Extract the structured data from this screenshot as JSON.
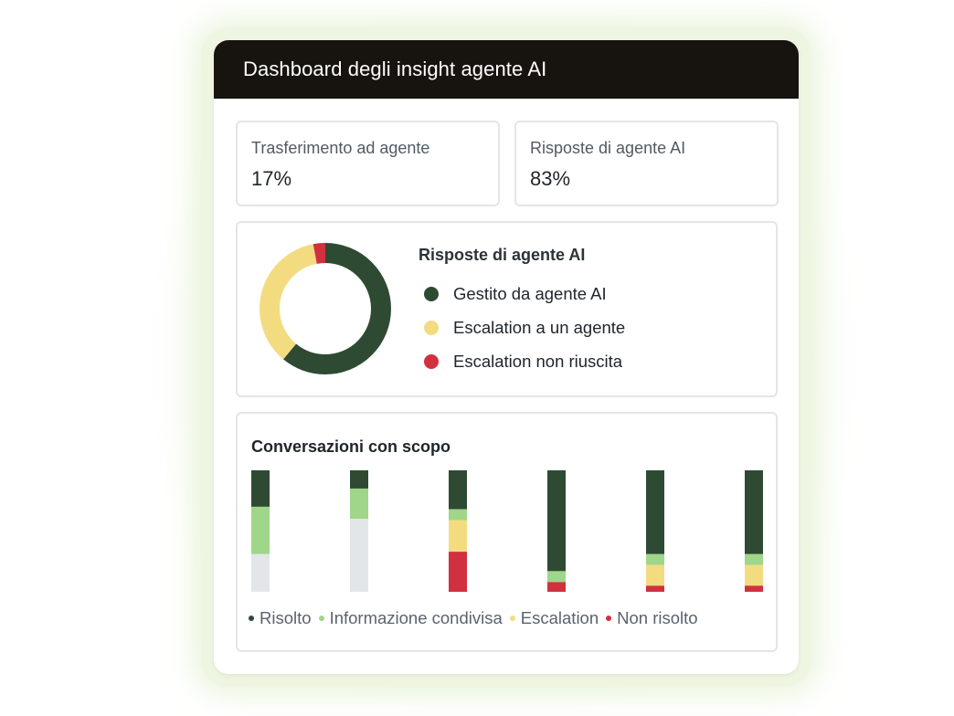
{
  "header": {
    "title": "Dashboard degli insight agente AI"
  },
  "stats": [
    {
      "label": "Trasferimento ad agente",
      "value": "17%"
    },
    {
      "label": "Risposte di agente AI",
      "value": "83%"
    }
  ],
  "donut": {
    "title": "Risposte di agente AI",
    "segments": [
      {
        "label": "Gestito da agente AI",
        "color": "#2e4a33",
        "fraction": 0.61
      },
      {
        "label": "Escalation a un agente",
        "color": "#f3dc80",
        "fraction": 0.36
      },
      {
        "label": "Escalation non riuscita",
        "color": "#d1303f",
        "fraction": 0.03
      }
    ]
  },
  "bars": {
    "title": "Conversazioni con scopo",
    "legend": [
      {
        "label": "Risolto",
        "color": "#2e4a33"
      },
      {
        "label": "Informazione condivisa",
        "color": "#9fd68a"
      },
      {
        "label": "Escalation",
        "color": "#f3dc80"
      },
      {
        "label": "Non risolto",
        "color": "#d1303f"
      }
    ],
    "chart_data": {
      "type": "bar",
      "stacked": true,
      "segment_order": [
        "Risolto",
        "Informazione condivisa",
        "Escalation",
        "Non risolto",
        "remainder"
      ],
      "remainder_color": "#e3e6e9",
      "bars": [
        [
          0.3,
          0.39,
          0,
          0,
          0.31
        ],
        [
          0.15,
          0.25,
          0,
          0,
          0.6
        ],
        [
          0.32,
          0.09,
          0.26,
          0.33,
          0
        ],
        [
          0.83,
          0.09,
          0,
          0.08,
          0
        ],
        [
          0.69,
          0.09,
          0.17,
          0.05,
          0
        ],
        [
          0.69,
          0.09,
          0.17,
          0.05,
          0
        ]
      ]
    }
  }
}
